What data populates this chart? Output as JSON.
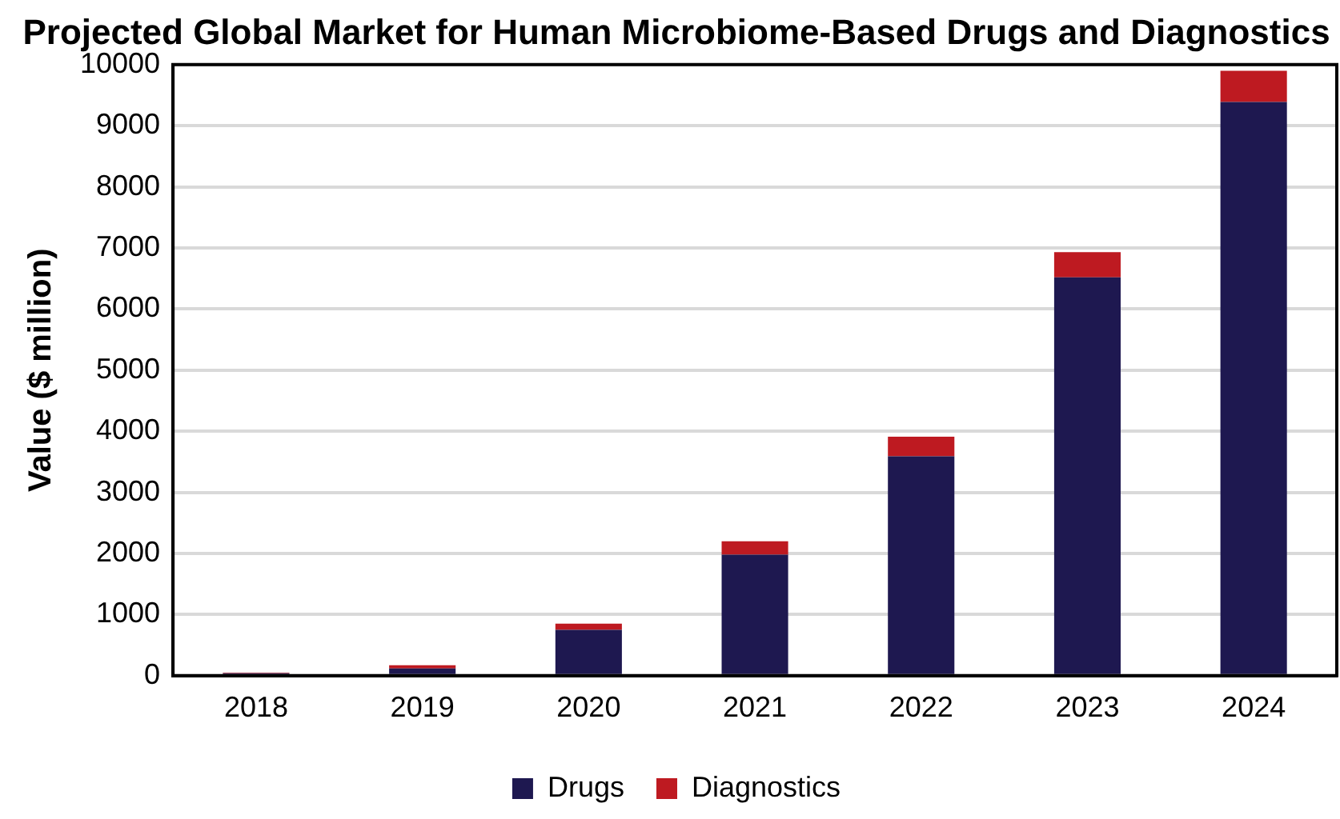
{
  "chart_data": {
    "type": "bar",
    "title": "Projected Global Market for Human Microbiome-Based Drugs and Diagnostics",
    "ylabel": "Value ($ million)",
    "categories": [
      "2018",
      "2019",
      "2020",
      "2021",
      "2022",
      "2023",
      "2024"
    ],
    "stacked": true,
    "series": [
      {
        "name": "Drugs",
        "color": "#1e1850",
        "values": [
          40,
          120,
          750,
          1980,
          3590,
          6520,
          9390
        ]
      },
      {
        "name": "Diagnostics",
        "color": "#be1a21",
        "values": [
          10,
          50,
          100,
          220,
          320,
          410,
          510
        ]
      }
    ],
    "ylim": [
      0,
      10000
    ],
    "yticks": [
      0,
      1000,
      2000,
      3000,
      4000,
      5000,
      6000,
      7000,
      8000,
      9000,
      10000
    ],
    "grid": "y",
    "legend": "bottom"
  }
}
